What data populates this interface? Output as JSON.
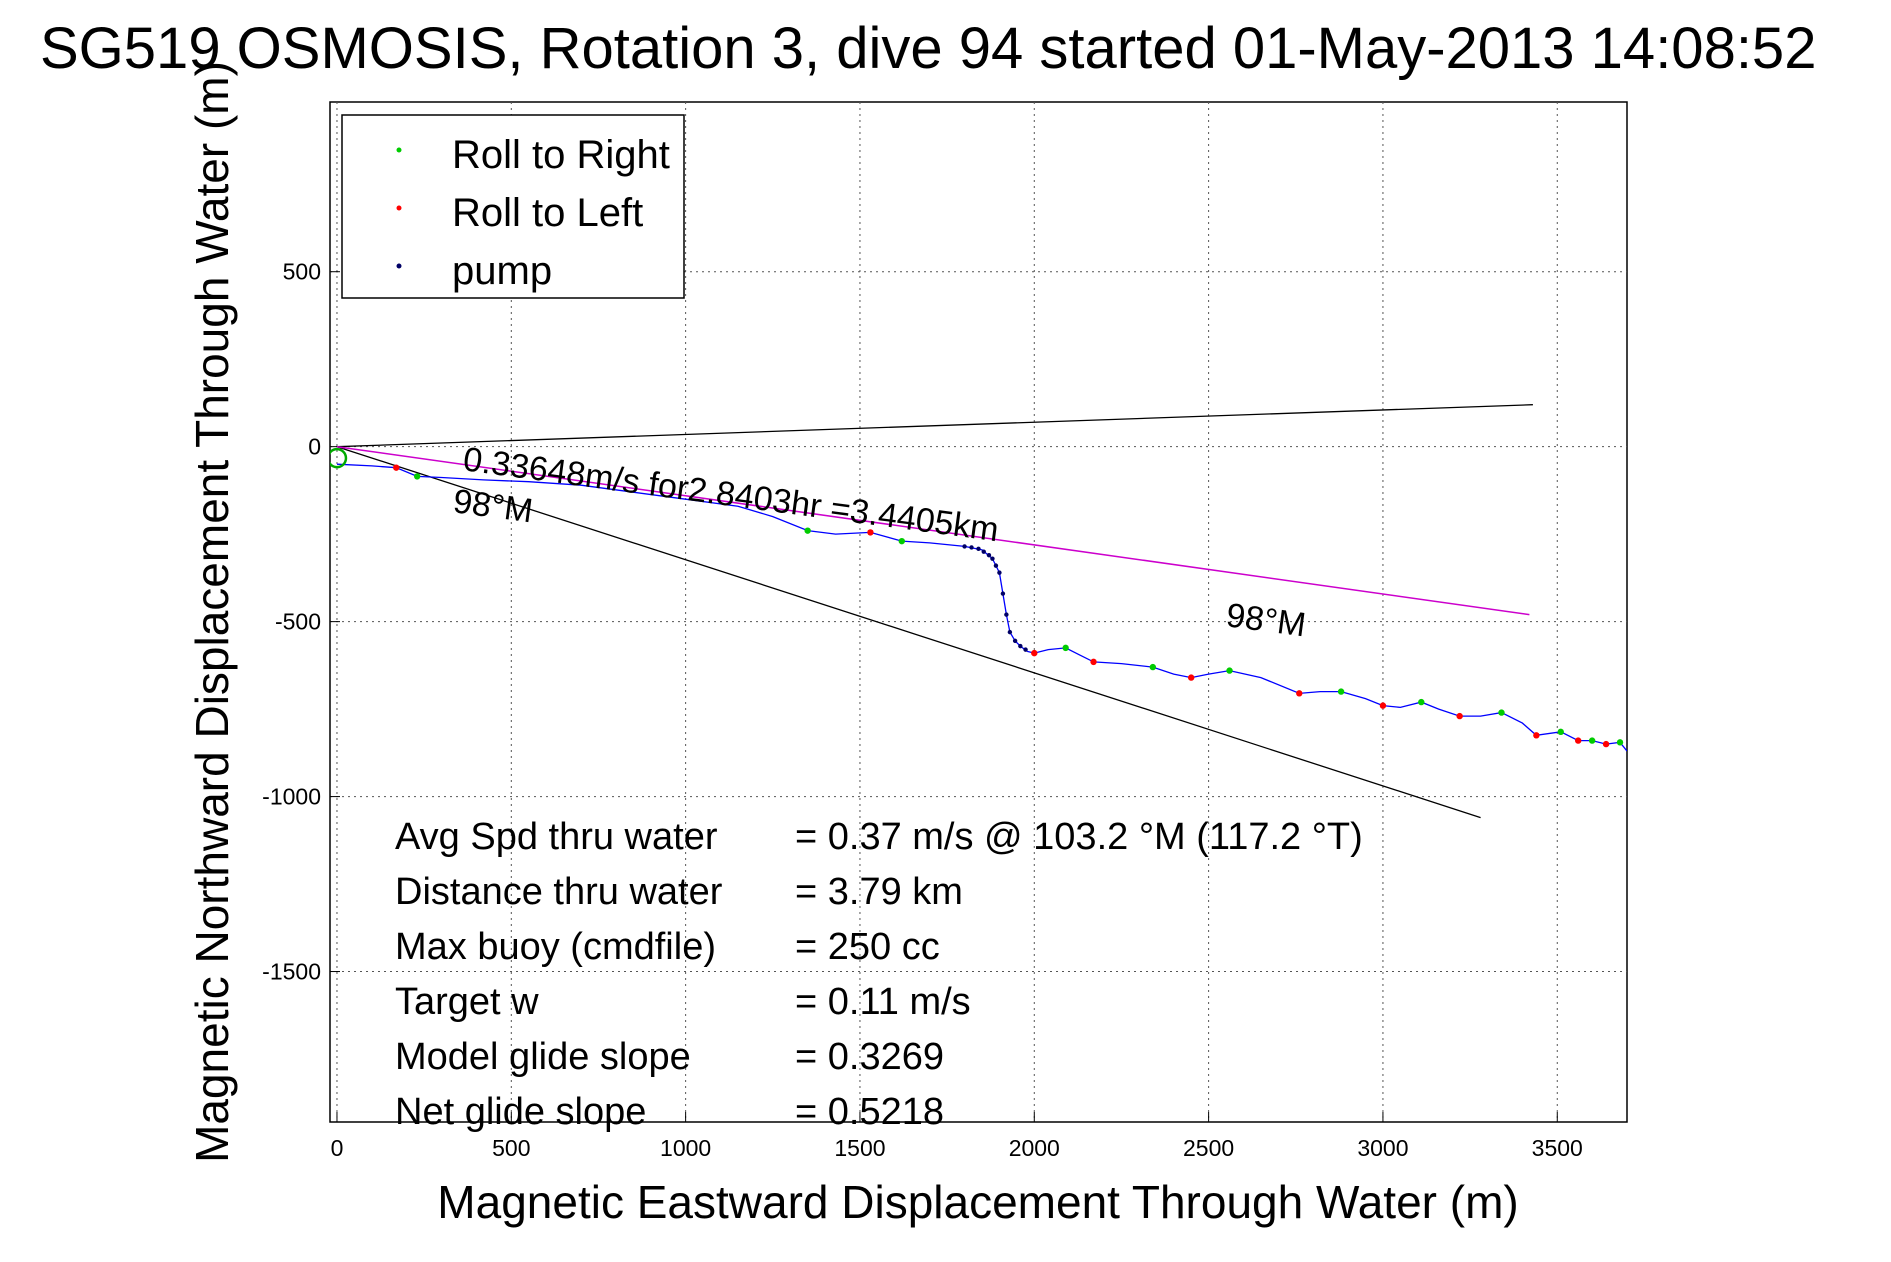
{
  "chart_data": {
    "type": "line",
    "title": "SG519 OSMOSIS, Rotation 3, dive 94 started 01-May-2013 14:08:52",
    "xlabel": "Magnetic Eastward Displacement Through Water (m)",
    "ylabel": "Magnetic Northward Displacement Through Water (m)",
    "xlim": [
      -20,
      3700
    ],
    "ylim": [
      -1930,
      985
    ],
    "xticks": [
      0,
      500,
      1000,
      1500,
      2000,
      2500,
      3000,
      3500
    ],
    "yticks": [
      500,
      0,
      -500,
      -1000,
      -1500
    ],
    "grid": true,
    "legend_position": "top-left",
    "legend": [
      {
        "label": "Roll to Right",
        "color": "#00cc00"
      },
      {
        "label": "Roll to Left",
        "color": "#ff0000"
      },
      {
        "label": "pump",
        "color": "#000066"
      }
    ],
    "colors": {
      "track": "#0000ff",
      "roll_right": "#00cc00",
      "roll_left": "#ff0000",
      "pump": "#000066",
      "avg_line": "#cc00cc",
      "ref_lines": "#000000",
      "start_marker": "#00aa00"
    },
    "track": {
      "x": [
        0,
        100,
        170,
        230,
        300,
        420,
        550,
        700,
        850,
        1000,
        1150,
        1250,
        1350,
        1430,
        1530,
        1620,
        1700,
        1800,
        1850,
        1880,
        1900,
        1910,
        1920,
        1930,
        1945,
        1960,
        1980,
        2000,
        2040,
        2090,
        2130,
        2170,
        2250,
        2340,
        2400,
        2450,
        2500,
        2560,
        2650,
        2760,
        2820,
        2880,
        2950,
        3000,
        3050,
        3110,
        3160,
        3220,
        3280,
        3340,
        3400,
        3440,
        3510,
        3560,
        3600,
        3640,
        3680,
        3700
      ],
      "y": [
        -50,
        -55,
        -60,
        -85,
        -88,
        -95,
        -100,
        -110,
        -130,
        -150,
        -170,
        -200,
        -240,
        -250,
        -245,
        -270,
        -275,
        -285,
        -295,
        -320,
        -360,
        -420,
        -480,
        -530,
        -555,
        -570,
        -585,
        -590,
        -580,
        -575,
        -595,
        -615,
        -620,
        -630,
        -650,
        -660,
        -650,
        -640,
        -660,
        -705,
        -700,
        -700,
        -720,
        -740,
        -745,
        -730,
        -750,
        -770,
        -770,
        -760,
        -790,
        -825,
        -815,
        -840,
        -840,
        -850,
        -845,
        -870
      ]
    },
    "roll_right": {
      "x": [
        230,
        1350,
        1620,
        2090,
        2340,
        2560,
        2880,
        3110,
        3340,
        3510,
        3600,
        3680
      ],
      "y": [
        -85,
        -240,
        -270,
        -575,
        -630,
        -640,
        -700,
        -730,
        -760,
        -815,
        -840,
        -845
      ]
    },
    "roll_left": {
      "x": [
        170,
        1530,
        2000,
        2170,
        2450,
        2760,
        3000,
        3220,
        3440,
        3560,
        3640
      ],
      "y": [
        -60,
        -245,
        -590,
        -615,
        -660,
        -705,
        -740,
        -770,
        -825,
        -840,
        -850
      ]
    },
    "pump": {
      "x": [
        1800,
        1820,
        1840,
        1855,
        1870,
        1880,
        1890,
        1900,
        1910,
        1920,
        1930,
        1945,
        1960,
        1975
      ],
      "y": [
        -285,
        -288,
        -292,
        -300,
        -310,
        -320,
        -340,
        -360,
        -420,
        -480,
        -530,
        -555,
        -570,
        -580
      ]
    },
    "avg_line": {
      "x": [
        0,
        3420
      ],
      "y": [
        0,
        -480
      ]
    },
    "ref_lines": [
      {
        "x": [
          0,
          3430
        ],
        "y": [
          0,
          120
        ]
      },
      {
        "x": [
          0,
          3280
        ],
        "y": [
          0,
          -1060
        ]
      }
    ],
    "annotations": {
      "avg_text": "0.33648m/s for2.8403hr =3.4405km",
      "heading_1": "98°M",
      "heading_2": "98°M"
    },
    "stats": [
      {
        "label": "Avg Spd thru water",
        "value": "=  0.37 m/s @ 103.2 °M (117.2 °T)"
      },
      {
        "label": "Distance thru water",
        "value": "=  3.79 km"
      },
      {
        "label": "Max buoy (cmdfile)",
        "value": "= 250 cc"
      },
      {
        "label": "Target w",
        "value": "= 0.11 m/s"
      },
      {
        "label": "Model glide slope",
        "value": "= 0.3269"
      },
      {
        "label": "Net glide slope",
        "value": "= 0.5218"
      }
    ]
  }
}
